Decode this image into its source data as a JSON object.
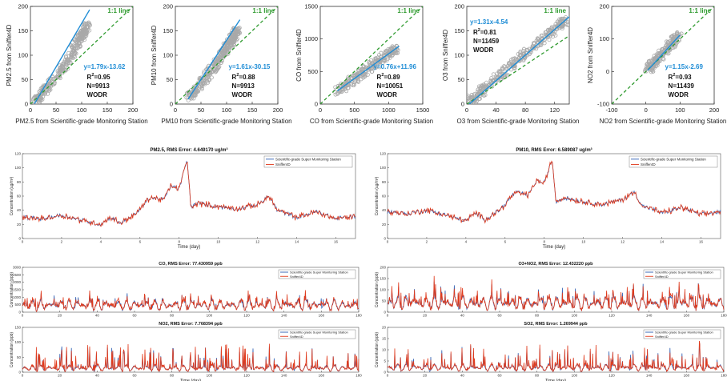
{
  "colors": {
    "scatter": "#a9a9a9",
    "fit": "#1f8dd6",
    "identity": "#2e9a2e",
    "fit_text": "#1f8dd6",
    "identity_text": "#2e9a2e",
    "series1": "#2f5fb3",
    "series2": "#e03a1c"
  },
  "chart_data": [
    {
      "type": "scatter",
      "xlabel": "PM2.5 from Scientific-grade Monitoring Station",
      "ylabel": "PM2.5 from Sniffer4D",
      "xticks": [
        "0",
        "50",
        "100",
        "150",
        "200"
      ],
      "yticks": [
        "0",
        "50",
        "100",
        "150",
        "200"
      ],
      "xlim": [
        0,
        200
      ],
      "ylim": [
        0,
        200
      ],
      "identity_label": "1:1 line",
      "equation": "y=1.79x-13.62",
      "r2_label": "R",
      "r2_sup": "2",
      "r2_value": "=0.95",
      "n": "N=9913",
      "method": "WODR",
      "fit": {
        "slope": 1.79,
        "intercept": -13.62
      },
      "points_cloud": [
        [
          8,
          4
        ],
        [
          20,
          18
        ],
        [
          40,
          40
        ],
        [
          60,
          70
        ],
        [
          75,
          92
        ],
        [
          90,
          120
        ],
        [
          100,
          140
        ],
        [
          105,
          150
        ],
        [
          110,
          160
        ]
      ]
    },
    {
      "type": "scatter",
      "xlabel": "PM10 from Scientific-grade Monitoring Station",
      "ylabel": "PM10 from Sniffer4D",
      "xticks": [
        "0",
        "50",
        "100",
        "150",
        "200"
      ],
      "yticks": [
        "0",
        "50",
        "100",
        "150",
        "200"
      ],
      "xlim": [
        0,
        200
      ],
      "ylim": [
        0,
        200
      ],
      "identity_label": "1:1 line",
      "equation": "y=1.61x-30.15",
      "r2_label": "R",
      "r2_sup": "2",
      "r2_value": "=0.88",
      "n": "N=9913",
      "method": "WODR",
      "fit": {
        "slope": 1.61,
        "intercept": -30.15
      },
      "points_cloud": [
        [
          25,
          15
        ],
        [
          40,
          28
        ],
        [
          60,
          55
        ],
        [
          75,
          75
        ],
        [
          90,
          100
        ],
        [
          100,
          115
        ],
        [
          110,
          130
        ],
        [
          115,
          140
        ],
        [
          120,
          152
        ]
      ]
    },
    {
      "type": "scatter",
      "xlabel": "CO from Scientific-grade Monitoring Station",
      "ylabel": "CO from Sniffer4D",
      "xticks": [
        "0",
        "500",
        "1000",
        "1500"
      ],
      "yticks": [
        "0",
        "500",
        "1000",
        "1500"
      ],
      "xlim": [
        0,
        1500
      ],
      "ylim": [
        0,
        1500
      ],
      "identity_label": "1:1 line",
      "equation": "y=0.76x+11.96",
      "r2_label": "R",
      "r2_sup": "2",
      "r2_value": "=0.89",
      "n": "N=10051",
      "method": "WODR",
      "fit": {
        "slope": 0.76,
        "intercept": 11.96
      },
      "points_cloud": [
        [
          250,
          200
        ],
        [
          400,
          310
        ],
        [
          550,
          430
        ],
        [
          700,
          540
        ],
        [
          850,
          660
        ],
        [
          1000,
          780
        ],
        [
          1100,
          850
        ]
      ]
    },
    {
      "type": "scatter",
      "xlabel": "O3 from Scientific-grade Monitoring Station",
      "ylabel": "O3 from Sniffer4D",
      "xticks": [
        "0",
        "40",
        "80",
        "120"
      ],
      "yticks": [
        "0",
        "50",
        "100",
        "150",
        "200"
      ],
      "xlim": [
        0,
        140
      ],
      "ylim": [
        0,
        200
      ],
      "identity_label": "1:1 line",
      "equation": "y=1.31x-4.54",
      "r2_label": "R",
      "r2_sup": "2",
      "r2_value": "=0.81",
      "n": "N=11459",
      "method": "WODR",
      "fit": {
        "slope": 1.31,
        "intercept": -4.54
      },
      "points_cloud": [
        [
          2,
          5
        ],
        [
          15,
          20
        ],
        [
          30,
          40
        ],
        [
          50,
          65
        ],
        [
          70,
          90
        ],
        [
          90,
          115
        ],
        [
          110,
          140
        ],
        [
          125,
          160
        ],
        [
          135,
          170
        ]
      ]
    },
    {
      "type": "scatter",
      "xlabel": "NO2 from Scientific-grade Monitoring Station",
      "ylabel": "NO2 from Sniffer4D",
      "xticks": [
        "-100",
        "0",
        "100",
        "200"
      ],
      "yticks": [
        "-100",
        "0",
        "100",
        "200"
      ],
      "xlim": [
        -100,
        200
      ],
      "ylim": [
        -100,
        200
      ],
      "identity_label": "1:1 line",
      "equation": "y=1.15x-2.69",
      "r2_label": "R",
      "r2_sup": "2",
      "r2_value": "=0.93",
      "n": "N=11439",
      "method": "WODR",
      "fit": {
        "slope": 1.15,
        "intercept": -2.69
      },
      "points_cloud": [
        [
          5,
          5
        ],
        [
          20,
          22
        ],
        [
          40,
          45
        ],
        [
          60,
          68
        ],
        [
          80,
          92
        ],
        [
          95,
          108
        ]
      ]
    },
    {
      "type": "line",
      "title": "PM2.5,   RMS Error: 4.649170 ug/m³",
      "xlabel": "Time (day)",
      "ylabel": "Concentration (ug/m³)",
      "xticks": [
        "0",
        "2",
        "4",
        "6",
        "8",
        "10",
        "12",
        "14",
        "16"
      ],
      "yticks": [
        "0",
        "20",
        "40",
        "60",
        "80",
        "100",
        "120"
      ],
      "xlim": [
        0,
        17
      ],
      "ylim": [
        0,
        120
      ],
      "legend": [
        "Scientific-grade Super Monitoring Station",
        "Sniffer4D"
      ],
      "legend_position": "top-right",
      "anchors": [
        [
          0,
          30
        ],
        [
          1,
          28
        ],
        [
          2,
          33
        ],
        [
          3,
          26
        ],
        [
          4,
          20
        ],
        [
          4.5,
          30
        ],
        [
          5,
          22
        ],
        [
          5.8,
          35
        ],
        [
          6.5,
          58
        ],
        [
          7.2,
          55
        ],
        [
          7.6,
          75
        ],
        [
          8,
          70
        ],
        [
          8.4,
          112
        ],
        [
          8.6,
          45
        ],
        [
          9,
          50
        ],
        [
          10,
          45
        ],
        [
          11,
          42
        ],
        [
          12,
          48
        ],
        [
          12.6,
          60
        ],
        [
          13,
          40
        ],
        [
          13.5,
          35
        ],
        [
          14,
          30
        ],
        [
          15,
          38
        ],
        [
          16,
          28
        ],
        [
          17,
          32
        ]
      ]
    },
    {
      "type": "line",
      "title": "PM10,   RMS Error: 6.589087 ug/m³",
      "xlabel": "Time (day)",
      "ylabel": "Concentration (ug/m³)",
      "xticks": [
        "0",
        "2",
        "4",
        "6",
        "8",
        "10",
        "12",
        "14",
        "16"
      ],
      "yticks": [
        "0",
        "20",
        "40",
        "60",
        "80",
        "100",
        "120"
      ],
      "xlim": [
        0,
        17
      ],
      "ylim": [
        0,
        120
      ],
      "legend": [
        "Scientific-grade Super Monitoring Station",
        "Sniffer4D"
      ],
      "legend_position": "top-right",
      "anchors": [
        [
          0,
          38
        ],
        [
          1,
          35
        ],
        [
          2,
          40
        ],
        [
          3,
          33
        ],
        [
          4,
          25
        ],
        [
          4.5,
          36
        ],
        [
          5,
          27
        ],
        [
          5.8,
          42
        ],
        [
          6.5,
          65
        ],
        [
          7.2,
          62
        ],
        [
          7.6,
          82
        ],
        [
          8,
          78
        ],
        [
          8.4,
          112
        ],
        [
          8.6,
          52
        ],
        [
          9,
          58
        ],
        [
          10,
          52
        ],
        [
          11,
          48
        ],
        [
          12,
          55
        ],
        [
          12.6,
          66
        ],
        [
          13,
          46
        ],
        [
          13.5,
          42
        ],
        [
          14,
          36
        ],
        [
          15,
          44
        ],
        [
          16,
          34
        ],
        [
          17,
          38
        ]
      ]
    },
    {
      "type": "line",
      "title": "CO,   RMS Error: 77.430959 ppb",
      "xlabel": "",
      "ylabel": "Concentration (ppb)",
      "xticks": [
        "0",
        "20",
        "40",
        "60",
        "80",
        "100",
        "120",
        "140",
        "160",
        "180"
      ],
      "yticks": [
        "0",
        "500",
        "1000",
        "1500",
        "2000",
        "2500",
        "3000"
      ],
      "xlim": [
        0,
        180
      ],
      "ylim": [
        0,
        3000
      ],
      "legend": [
        "Scientific-grade Super Monitoring Station",
        "Sniffer4D"
      ],
      "legend_position": "top-right",
      "base": 700,
      "amplitude": 600
    },
    {
      "type": "line",
      "title": "O3+NO2,   RMS Error: 12.432220 ppb",
      "xlabel": "",
      "ylabel": "Concentration (ppb)",
      "xticks": [
        "0",
        "20",
        "40",
        "60",
        "80",
        "100",
        "120",
        "140",
        "160",
        "180"
      ],
      "yticks": [
        "0",
        "50",
        "100",
        "150",
        "200"
      ],
      "xlim": [
        0,
        180
      ],
      "ylim": [
        0,
        200
      ],
      "legend": [
        "Scientific-grade Super Monitoring Station",
        "Sniffer4D"
      ],
      "legend_position": "top-right",
      "base": 60,
      "amplitude": 70
    },
    {
      "type": "line",
      "title": "NO2,   RMS Error: 7.768394 ppb",
      "xlabel": "Time (day)",
      "ylabel": "Concentration (ppb)",
      "xticks": [
        "0",
        "20",
        "40",
        "60",
        "80",
        "100",
        "120",
        "140",
        "160",
        "180"
      ],
      "yticks": [
        "0",
        "50",
        "100",
        "150"
      ],
      "xlim": [
        0,
        180
      ],
      "ylim": [
        0,
        150
      ],
      "legend": [
        "Scientific-grade Super Monitoring Station",
        "Sniffer4D"
      ],
      "legend_position": "top-right",
      "base": 20,
      "amplitude": 70
    },
    {
      "type": "line",
      "title": "SO2,   RMS Error: 1.269944 ppb",
      "xlabel": "Time (day)",
      "ylabel": "Concentration (ppb)",
      "xticks": [
        "0",
        "20",
        "40",
        "60",
        "80",
        "100",
        "120",
        "140",
        "160",
        "180"
      ],
      "yticks": [
        "0",
        "5",
        "10",
        "15",
        "20"
      ],
      "xlim": [
        0,
        180
      ],
      "ylim": [
        0,
        20
      ],
      "legend": [
        "Scientific-grade Super Monitoring Station",
        "Sniffer4D"
      ],
      "legend_position": "top-right",
      "base": 3,
      "amplitude": 9
    }
  ]
}
